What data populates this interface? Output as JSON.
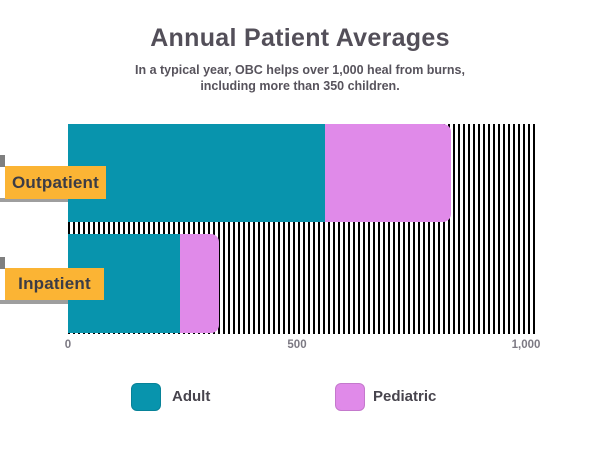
{
  "header": {
    "title": "Annual Patient Averages",
    "subtitle_line1": "In a typical year, OBC helps over 1,000 heal from burns,",
    "subtitle_line2": "including more than 350 children."
  },
  "chart_data": {
    "type": "bar",
    "orientation": "horizontal",
    "stacked": true,
    "title": "Annual Patient Averages",
    "categories": [
      "Outpatient",
      "Inpatient"
    ],
    "series": [
      {
        "name": "Adult",
        "color": "#0894AD",
        "values": [
          560,
          245
        ]
      },
      {
        "name": "Pediatric",
        "color": "#E08AE9",
        "values": [
          275,
          85
        ]
      }
    ],
    "x_ticks": [
      {
        "label": "0",
        "value": 0
      },
      {
        "label": "500",
        "value": 500
      },
      {
        "label": "1,000",
        "value": 1000
      }
    ],
    "xlim": [
      0,
      1020
    ],
    "grid": false,
    "hatch_background": true,
    "legend_position": "bottom"
  },
  "colors": {
    "category_label_bg": "#FBB434",
    "adult": "#0894AD",
    "pediatric": "#E08AE9",
    "hatch_line": "#000000"
  }
}
